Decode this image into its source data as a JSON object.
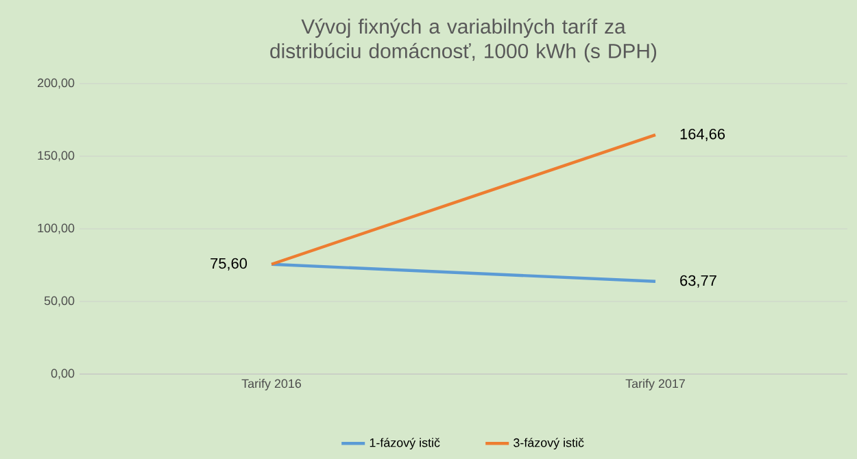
{
  "chart_data": {
    "type": "line",
    "title": "Vývoj fixných a variabilných taríf za distribúciu domácnosť, 1000 kWh (s DPH)",
    "categories": [
      "Tarify 2016",
      "Tarify 2017"
    ],
    "series": [
      {
        "name": "1-fázový istič",
        "color": "#5b9bd5",
        "values": [
          75.6,
          63.77
        ],
        "value_labels": [
          "75,60",
          "63,77"
        ]
      },
      {
        "name": "3-fázový istič",
        "color": "#ed7d31",
        "values": [
          75.6,
          164.66
        ],
        "value_labels": [
          null,
          "164,66"
        ]
      }
    ],
    "ylim": [
      0,
      200
    ],
    "yticks": [
      {
        "value": 0,
        "label": "0,00"
      },
      {
        "value": 50,
        "label": "50,00"
      },
      {
        "value": 100,
        "label": "100,00"
      },
      {
        "value": 150,
        "label": "150,00"
      },
      {
        "value": 200,
        "label": "200,00"
      }
    ],
    "grid": "y",
    "legend": "bottom",
    "marker": "none",
    "line_style": "solid"
  }
}
